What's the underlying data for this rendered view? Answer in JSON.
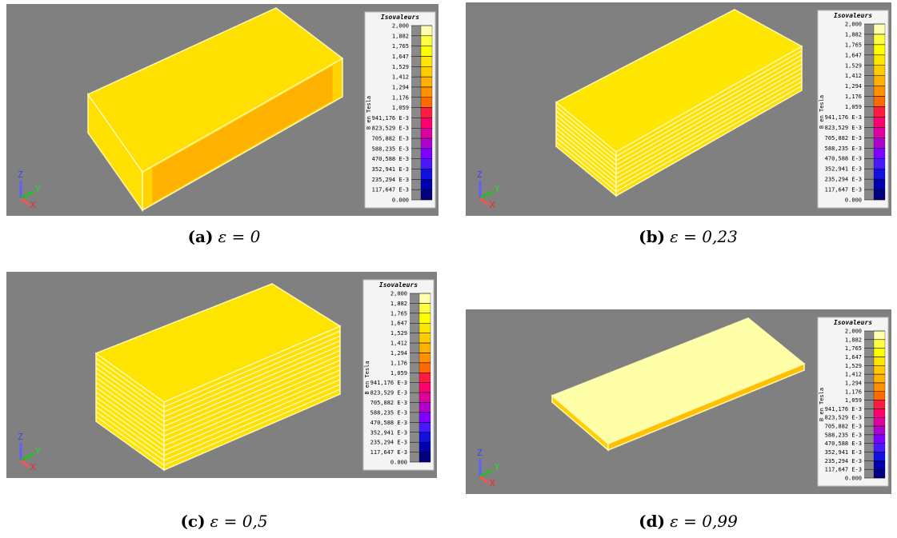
{
  "panels": [
    {
      "label": "(a)",
      "caption": "ε = 0"
    },
    {
      "label": "(b)",
      "caption": "ε = 0,23"
    },
    {
      "label": "(c)",
      "caption": "ε = 0,5"
    },
    {
      "label": "(d)",
      "caption": "ε = 0,99"
    }
  ],
  "legend": {
    "title": "Isovaleurs",
    "unit": "B en Tesla",
    "levels": [
      "2,000",
      "1,882",
      "1,765",
      "1,647",
      "1,529",
      "1,412",
      "1,294",
      "1,176",
      "1,059",
      "941,176 E-3",
      "823,529 E-3",
      "705,882 E-3",
      "588,235 E-3",
      "470,588 E-3",
      "352,941 E-3",
      "235,294 E-3",
      "117,647 E-3",
      "0.000"
    ],
    "colors": [
      "#ffffb0",
      "#ffff40",
      "#ffff00",
      "#ffe600",
      "#ffcc00",
      "#ffb000",
      "#ff9000",
      "#ff6a00",
      "#ff1a40",
      "#ff0070",
      "#e000a0",
      "#b000d0",
      "#8000ff",
      "#4a18ff",
      "#1010e0",
      "#0000b0",
      "#000080"
    ]
  },
  "axes": {
    "x": "X",
    "y": "Y",
    "z": "Z"
  }
}
